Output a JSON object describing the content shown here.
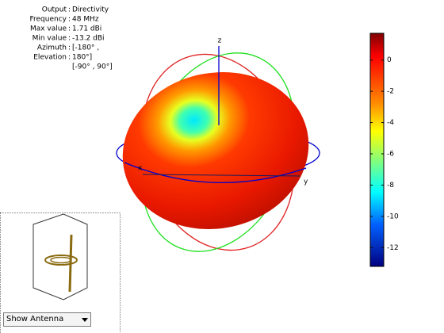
{
  "info": {
    "rows": [
      {
        "label": "Output",
        "value": "Directivity"
      },
      {
        "label": "Frequency",
        "value": "48 MHz"
      },
      {
        "label": "Max value",
        "value": "1.71 dBi"
      },
      {
        "label": "Min value",
        "value": "-13.2 dBi"
      },
      {
        "label": "Azimuth",
        "value": "[-180° ,"
      },
      {
        "label": "Elevation",
        "value": "180°]"
      }
    ],
    "overflow": "[-90° , 90°]"
  },
  "axes": {
    "x": "x",
    "y": "y",
    "z": "z"
  },
  "colorbar": {
    "lim": [
      -13.2,
      1.71
    ],
    "ticks": [
      0,
      -2,
      -4,
      -6,
      -8,
      -10,
      -12
    ]
  },
  "dropdown": "Show Antenna"
}
